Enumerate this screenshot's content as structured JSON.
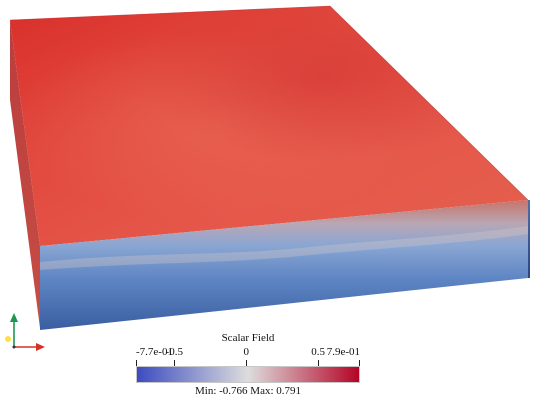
{
  "colorbar": {
    "title": "Scalar Field",
    "ticks": [
      {
        "label": "-7.7e-01",
        "value": -0.766
      },
      {
        "label": "-0.5",
        "value": -0.5
      },
      {
        "label": "0",
        "value": 0
      },
      {
        "label": "0.5",
        "value": 0.5
      },
      {
        "label": "7.9e-01",
        "value": 0.791
      }
    ],
    "range_text": "Min: -0.766 Max: 0.791",
    "min": -0.766,
    "max": 0.791,
    "colormap": {
      "low": "#3b4cc0",
      "mid": "#dddddd",
      "high": "#b40426"
    }
  },
  "scene": {
    "top_color": "#e0483c",
    "front_face_top_color": "#c86f66",
    "front_face_bottom_color": "#3e67a9",
    "right_face_color": "#2f4f8a"
  },
  "axes_colors": {
    "x": "#d73027",
    "y": "#1a9850",
    "z": "#fee040"
  }
}
